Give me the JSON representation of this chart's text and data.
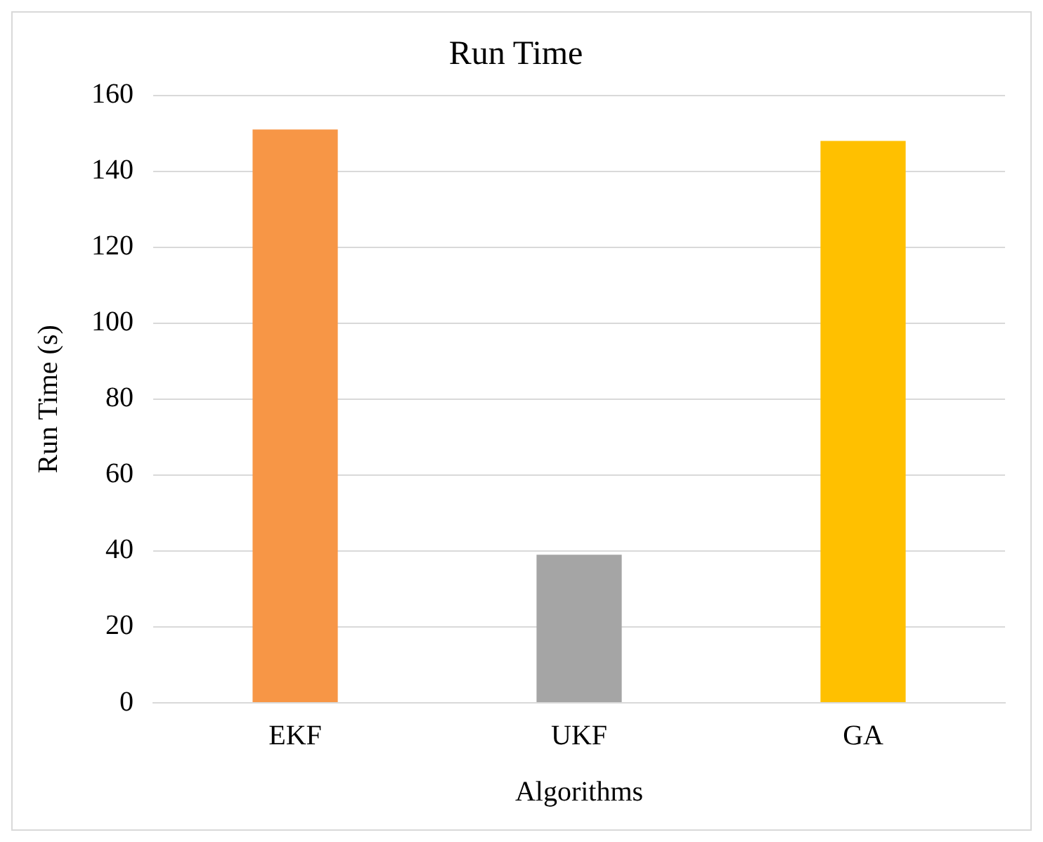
{
  "chart_data": {
    "type": "bar",
    "title": "Run Time",
    "xlabel": "Algorithms",
    "ylabel": "Run Time (s)",
    "categories": [
      "EKF",
      "UKF",
      "GA"
    ],
    "values": [
      151,
      39,
      148
    ],
    "colors": [
      "#f79646",
      "#a5a5a5",
      "#ffc000"
    ],
    "ylim": [
      0,
      160
    ],
    "yticks": [
      0,
      20,
      40,
      60,
      80,
      100,
      120,
      140,
      160
    ],
    "grid": "y"
  }
}
